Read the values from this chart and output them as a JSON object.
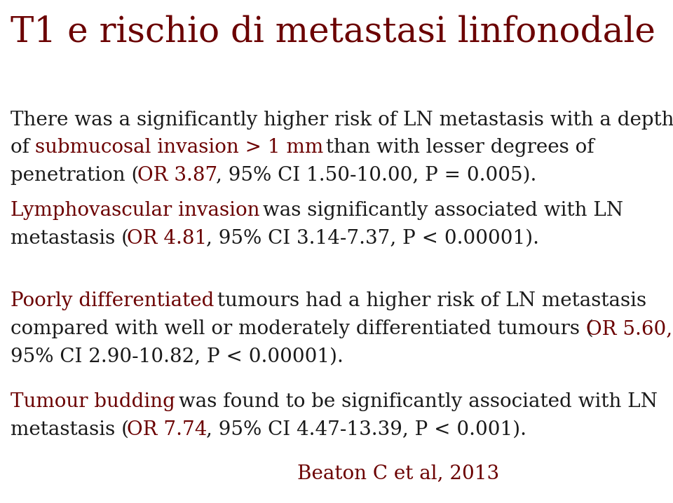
{
  "title": "T1 e rischio di metastasi linfonodale",
  "title_color": "#6B0000",
  "title_fontsize": 36,
  "background_color": "#FFFFFF",
  "dark_red": "#6B0000",
  "black": "#1a1a1a",
  "paragraphs": [
    {
      "segments": [
        {
          "text": "There was a significantly higher risk of LN metastasis with a depth\nof ",
          "color": "#1a1a1a"
        },
        {
          "text": "submucosal invasion > 1 mm",
          "color": "#6B0000"
        },
        {
          "text": " than with lesser degrees of\npenetration (",
          "color": "#1a1a1a"
        },
        {
          "text": "OR 3.87",
          "color": "#6B0000"
        },
        {
          "text": ", 95% CI 1.50-10.00, P = 0.005).",
          "color": "#1a1a1a"
        }
      ]
    },
    {
      "segments": [
        {
          "text": "Lymphovascular invasion",
          "color": "#6B0000"
        },
        {
          "text": " was significantly associated with LN\nmetastasis (",
          "color": "#1a1a1a"
        },
        {
          "text": "OR 4.81",
          "color": "#6B0000"
        },
        {
          "text": ", 95% CI 3.14-7.37, P < 0.00001).",
          "color": "#1a1a1a"
        }
      ]
    },
    {
      "segments": [
        {
          "text": "Poorly differentiated",
          "color": "#6B0000"
        },
        {
          "text": " tumours had a higher risk of LN metastasis\ncompared with well or moderately differentiated tumours (",
          "color": "#1a1a1a"
        },
        {
          "text": "OR 5.60,",
          "color": "#6B0000"
        },
        {
          "text": "\n95% CI 2.90-10.82, P < 0.00001).",
          "color": "#1a1a1a"
        }
      ]
    },
    {
      "segments": [
        {
          "text": "Tumour budding",
          "color": "#6B0000"
        },
        {
          "text": " was found to be significantly associated with LN\nmetastasis (",
          "color": "#1a1a1a"
        },
        {
          "text": "OR 7.74",
          "color": "#6B0000"
        },
        {
          "text": ", 95% CI 4.47-13.39, P < 0.001).",
          "color": "#1a1a1a"
        }
      ]
    }
  ],
  "citation": "Beaton C et al, 2013",
  "citation_color": "#6B0000",
  "citation_fontsize": 20,
  "body_fontsize": 20,
  "fig_width": 9.6,
  "fig_height": 7.18
}
